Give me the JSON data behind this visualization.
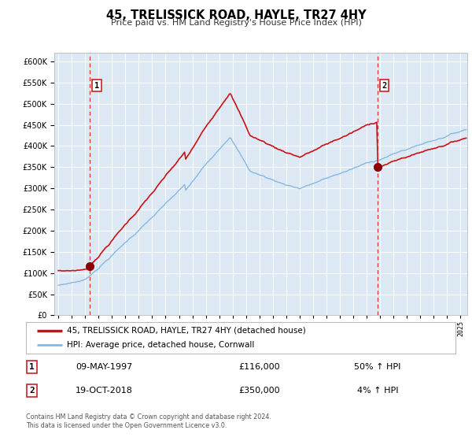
{
  "title": "45, TRELISSICK ROAD, HAYLE, TR27 4HY",
  "subtitle": "Price paid vs. HM Land Registry's House Price Index (HPI)",
  "background_color": "#ffffff",
  "plot_bg_color": "#dce9f5",
  "hpi_color": "#88b8e0",
  "price_color": "#cc1111",
  "marker_color": "#8b0000",
  "purchase1_date": 1997.36,
  "purchase1_price": 116000,
  "purchase2_date": 2018.8,
  "purchase2_price": 350000,
  "ylim": [
    0,
    620000
  ],
  "xlim_start": 1994.7,
  "xlim_end": 2025.5,
  "legend_label_price": "45, TRELISSICK ROAD, HAYLE, TR27 4HY (detached house)",
  "legend_label_hpi": "HPI: Average price, detached house, Cornwall",
  "table_row1_date": "09-MAY-1997",
  "table_row1_price": "£116,000",
  "table_row1_hpi": "50% ↑ HPI",
  "table_row2_date": "19-OCT-2018",
  "table_row2_price": "£350,000",
  "table_row2_hpi": "4% ↑ HPI",
  "footer1": "Contains HM Land Registry data © Crown copyright and database right 2024.",
  "footer2": "This data is licensed under the Open Government Licence v3.0."
}
